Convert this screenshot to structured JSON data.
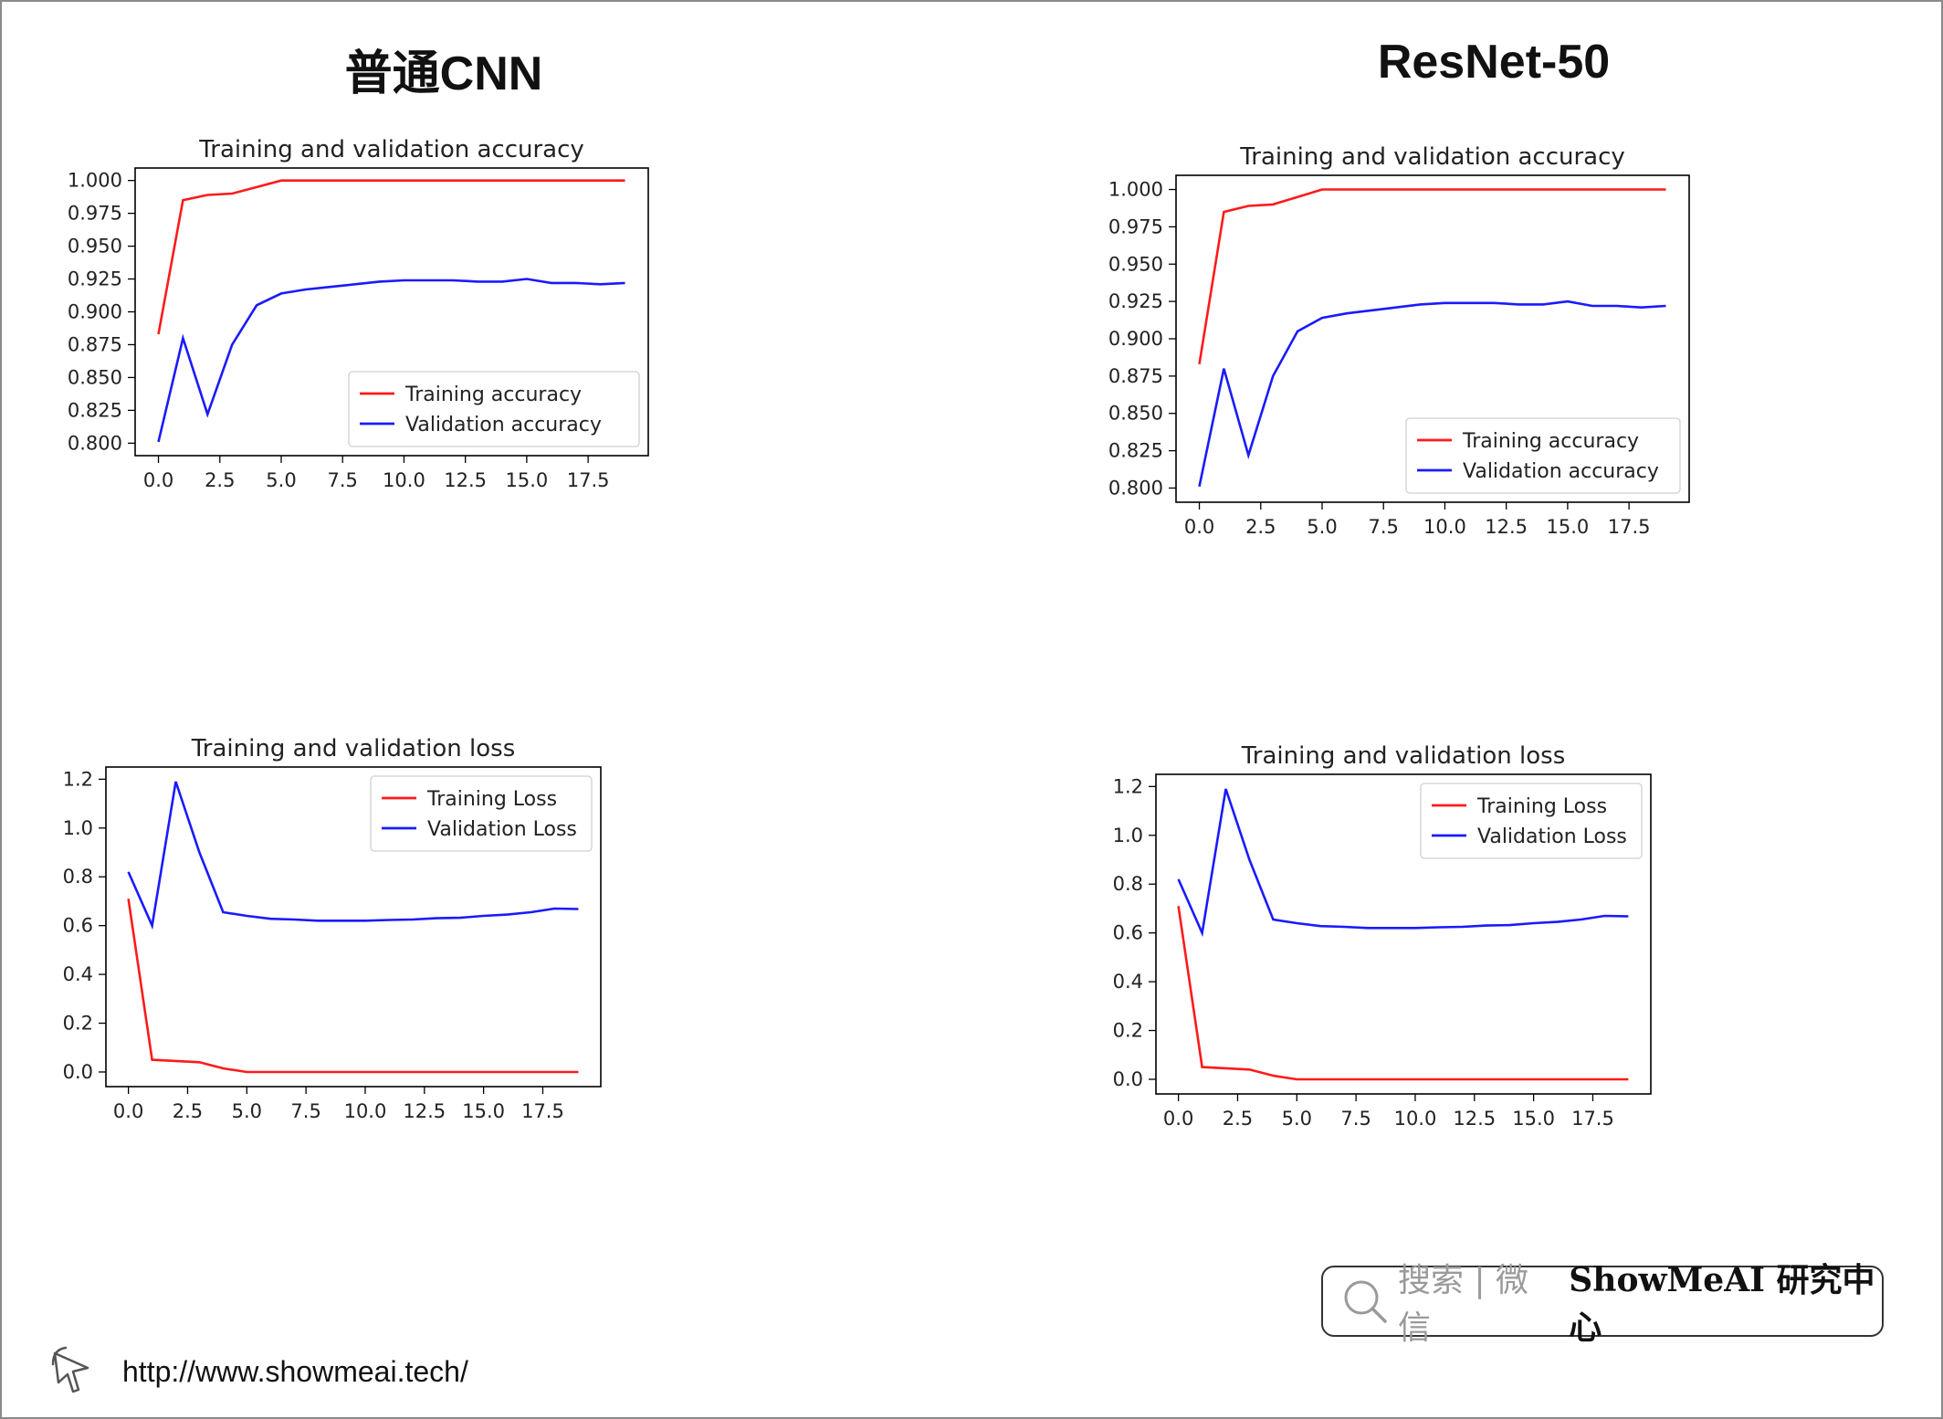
{
  "titles": {
    "left": "普通CNN",
    "right": "ResNet-50"
  },
  "chart_data": [
    {
      "id": "cnn-acc",
      "type": "line",
      "title": "Training and validation accuracy",
      "xlabel": "",
      "ylabel": "",
      "xlim": [
        -0.95,
        19.95
      ],
      "ylim": [
        0.7905,
        1.0095
      ],
      "xticks": [
        0.0,
        2.5,
        5.0,
        7.5,
        10.0,
        12.5,
        15.0,
        17.5
      ],
      "xtick_labels": [
        "0.0",
        "2.5",
        "5.0",
        "7.5",
        "10.0",
        "12.5",
        "15.0",
        "17.5"
      ],
      "yticks": [
        0.8,
        0.825,
        0.85,
        0.875,
        0.9,
        0.925,
        0.95,
        0.975,
        1.0
      ],
      "ytick_labels": [
        "0.800",
        "0.825",
        "0.850",
        "0.875",
        "0.900",
        "0.925",
        "0.950",
        "0.975",
        "1.000"
      ],
      "legend_loc": "lower-right",
      "x": [
        0,
        1,
        2,
        3,
        4,
        5,
        6,
        7,
        8,
        9,
        10,
        11,
        12,
        13,
        14,
        15,
        16,
        17,
        18,
        19
      ],
      "series": [
        {
          "name": "Training accuracy",
          "color": "#ff1a1a",
          "values": [
            0.883,
            0.985,
            0.989,
            0.99,
            0.995,
            1.0,
            1.0,
            1.0,
            1.0,
            1.0,
            1.0,
            1.0,
            1.0,
            1.0,
            1.0,
            1.0,
            1.0,
            1.0,
            1.0,
            1.0
          ]
        },
        {
          "name": "Validation accuracy",
          "color": "#1a1aff",
          "values": [
            0.801,
            0.88,
            0.822,
            0.875,
            0.905,
            0.914,
            0.917,
            0.919,
            0.921,
            0.923,
            0.924,
            0.924,
            0.924,
            0.923,
            0.923,
            0.925,
            0.922,
            0.922,
            0.921,
            0.922
          ]
        }
      ]
    },
    {
      "id": "cnn-loss",
      "type": "line",
      "title": "Training and validation loss",
      "xlabel": "",
      "ylabel": "",
      "xlim": [
        -0.95,
        19.95
      ],
      "ylim": [
        -0.06,
        1.25
      ],
      "xticks": [
        0.0,
        2.5,
        5.0,
        7.5,
        10.0,
        12.5,
        15.0,
        17.5
      ],
      "xtick_labels": [
        "0.0",
        "2.5",
        "5.0",
        "7.5",
        "10.0",
        "12.5",
        "15.0",
        "17.5"
      ],
      "yticks": [
        0.0,
        0.2,
        0.4,
        0.6,
        0.8,
        1.0,
        1.2
      ],
      "ytick_labels": [
        "0.0",
        "0.2",
        "0.4",
        "0.6",
        "0.8",
        "1.0",
        "1.2"
      ],
      "legend_loc": "upper-right",
      "x": [
        0,
        1,
        2,
        3,
        4,
        5,
        6,
        7,
        8,
        9,
        10,
        11,
        12,
        13,
        14,
        15,
        16,
        17,
        18,
        19
      ],
      "series": [
        {
          "name": "Training Loss",
          "color": "#ff1a1a",
          "values": [
            0.71,
            0.05,
            0.045,
            0.04,
            0.015,
            0.0,
            0.0,
            0.0,
            0.0,
            0.0,
            0.0,
            0.0,
            0.0,
            0.0,
            0.0,
            0.0,
            0.0,
            0.0,
            0.0,
            0.0
          ]
        },
        {
          "name": "Validation Loss",
          "color": "#1a1aff",
          "values": [
            0.82,
            0.6,
            1.19,
            0.9,
            0.655,
            0.64,
            0.628,
            0.625,
            0.62,
            0.62,
            0.62,
            0.623,
            0.625,
            0.63,
            0.632,
            0.64,
            0.645,
            0.655,
            0.67,
            0.668
          ]
        }
      ]
    },
    {
      "id": "resnet-acc",
      "type": "line",
      "title": "Training and validation accuracy",
      "xlabel": "",
      "ylabel": "",
      "xlim": [
        -0.95,
        19.95
      ],
      "ylim": [
        0.7905,
        1.0095
      ],
      "xticks": [
        0.0,
        2.5,
        5.0,
        7.5,
        10.0,
        12.5,
        15.0,
        17.5
      ],
      "xtick_labels": [
        "0.0",
        "2.5",
        "5.0",
        "7.5",
        "10.0",
        "12.5",
        "15.0",
        "17.5"
      ],
      "yticks": [
        0.8,
        0.825,
        0.85,
        0.875,
        0.9,
        0.925,
        0.95,
        0.975,
        1.0
      ],
      "ytick_labels": [
        "0.800",
        "0.825",
        "0.850",
        "0.875",
        "0.900",
        "0.925",
        "0.950",
        "0.975",
        "1.000"
      ],
      "legend_loc": "lower-right",
      "x": [
        0,
        1,
        2,
        3,
        4,
        5,
        6,
        7,
        8,
        9,
        10,
        11,
        12,
        13,
        14,
        15,
        16,
        17,
        18,
        19
      ],
      "series": [
        {
          "name": "Training accuracy",
          "color": "#ff1a1a",
          "values": [
            0.883,
            0.985,
            0.989,
            0.99,
            0.995,
            1.0,
            1.0,
            1.0,
            1.0,
            1.0,
            1.0,
            1.0,
            1.0,
            1.0,
            1.0,
            1.0,
            1.0,
            1.0,
            1.0,
            1.0
          ]
        },
        {
          "name": "Validation accuracy",
          "color": "#1a1aff",
          "values": [
            0.801,
            0.88,
            0.822,
            0.875,
            0.905,
            0.914,
            0.917,
            0.919,
            0.921,
            0.923,
            0.924,
            0.924,
            0.924,
            0.923,
            0.923,
            0.925,
            0.922,
            0.922,
            0.921,
            0.922
          ]
        }
      ]
    },
    {
      "id": "resnet-loss",
      "type": "line",
      "title": "Training and validation loss",
      "xlabel": "",
      "ylabel": "",
      "xlim": [
        -0.95,
        19.95
      ],
      "ylim": [
        -0.06,
        1.25
      ],
      "xticks": [
        0.0,
        2.5,
        5.0,
        7.5,
        10.0,
        12.5,
        15.0,
        17.5
      ],
      "xtick_labels": [
        "0.0",
        "2.5",
        "5.0",
        "7.5",
        "10.0",
        "12.5",
        "15.0",
        "17.5"
      ],
      "yticks": [
        0.0,
        0.2,
        0.4,
        0.6,
        0.8,
        1.0,
        1.2
      ],
      "ytick_labels": [
        "0.0",
        "0.2",
        "0.4",
        "0.6",
        "0.8",
        "1.0",
        "1.2"
      ],
      "legend_loc": "upper-right",
      "x": [
        0,
        1,
        2,
        3,
        4,
        5,
        6,
        7,
        8,
        9,
        10,
        11,
        12,
        13,
        14,
        15,
        16,
        17,
        18,
        19
      ],
      "series": [
        {
          "name": "Training Loss",
          "color": "#ff1a1a",
          "values": [
            0.71,
            0.05,
            0.045,
            0.04,
            0.015,
            0.0,
            0.0,
            0.0,
            0.0,
            0.0,
            0.0,
            0.0,
            0.0,
            0.0,
            0.0,
            0.0,
            0.0,
            0.0,
            0.0,
            0.0
          ]
        },
        {
          "name": "Validation Loss",
          "color": "#1a1aff",
          "values": [
            0.82,
            0.6,
            1.19,
            0.9,
            0.655,
            0.64,
            0.628,
            0.625,
            0.62,
            0.62,
            0.62,
            0.623,
            0.625,
            0.63,
            0.632,
            0.64,
            0.645,
            0.655,
            0.67,
            0.668
          ]
        }
      ]
    }
  ],
  "search_badge": {
    "icon": "search-icon",
    "hint": "搜索 | 微信",
    "brand": "ShowMeAI 研究中心"
  },
  "footer": {
    "icon": "cursor-icon",
    "url": "http://www.showmeai.tech/"
  }
}
